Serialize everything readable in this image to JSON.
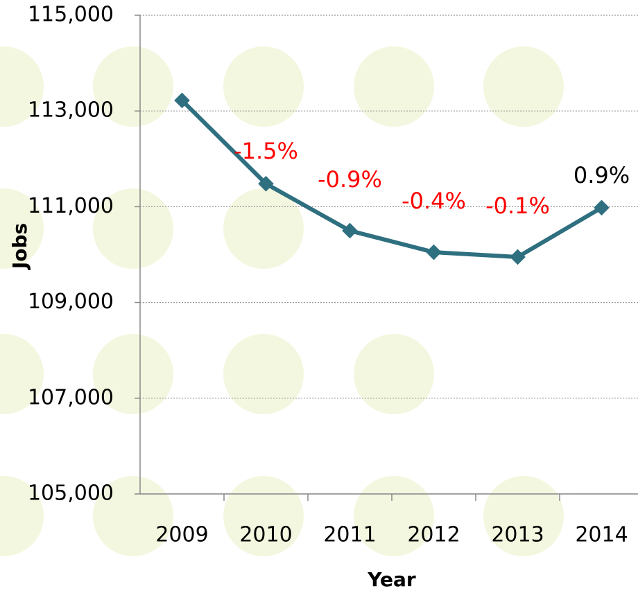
{
  "chart_data": {
    "type": "line",
    "xlabel": "Year",
    "ylabel": "Jobs",
    "categories": [
      "2009",
      "2010",
      "2011",
      "2012",
      "2013",
      "2014"
    ],
    "series": [
      {
        "name": "Jobs",
        "color": "#2e6f80",
        "values": [
          113220,
          111480,
          110500,
          110050,
          109950,
          110980
        ]
      }
    ],
    "ylim": [
      105000,
      115000
    ],
    "yticks": [
      {
        "value": 105000,
        "label": "105,000"
      },
      {
        "value": 107000,
        "label": "107,000"
      },
      {
        "value": 109000,
        "label": "109,000"
      },
      {
        "value": 111000,
        "label": "111,000"
      },
      {
        "value": 113000,
        "label": "113,000"
      },
      {
        "value": 115000,
        "label": "115,000"
      }
    ],
    "grid": true,
    "annotations": [
      {
        "text": "-1.5%",
        "color": "#ff0000"
      },
      {
        "text": "-0.9%",
        "color": "#ff0000"
      },
      {
        "text": "-0.4%",
        "color": "#ff0000"
      },
      {
        "text": "-0.1%",
        "color": "#ff0000"
      },
      {
        "text": "0.9%",
        "color": "#000000"
      }
    ]
  }
}
